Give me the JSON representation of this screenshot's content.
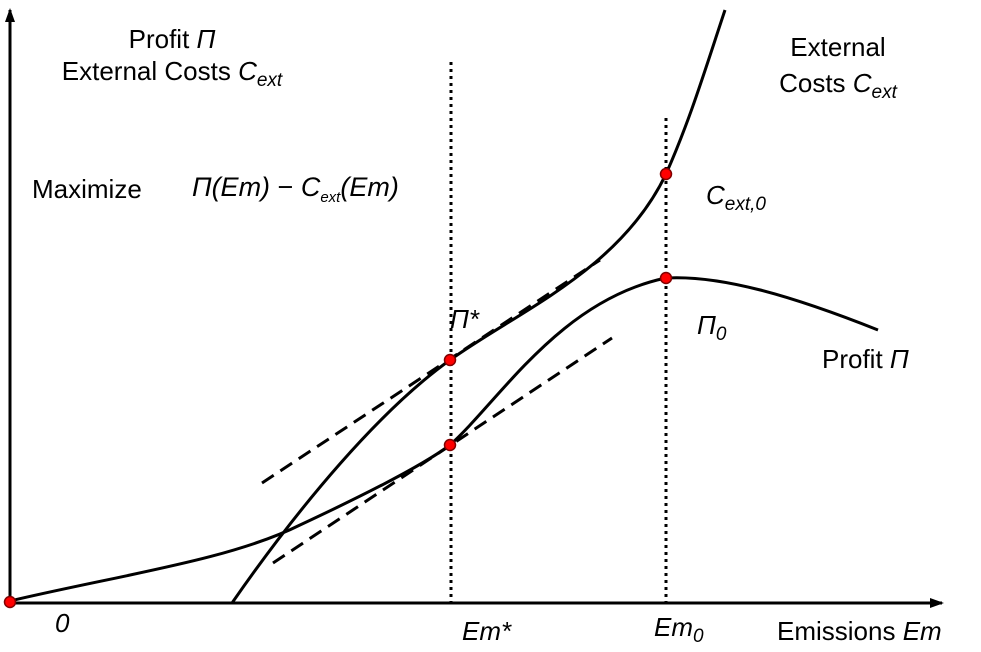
{
  "y_axis_label": {
    "line1_text": "Profit ",
    "line1_symbol": "Π",
    "line2_text": "External Costs ",
    "line2_symbol": "C",
    "line2_sub": "ext"
  },
  "objective": {
    "verb": "Maximize",
    "formula_pi": "Π(Em)",
    "formula_minus": " − ",
    "formula_c": "C",
    "formula_c_sub": "ext",
    "formula_tail": "(Em)"
  },
  "external_costs_curve_label": {
    "line1": "External",
    "line2_text": "Costs ",
    "line2_symbol": "C",
    "line2_sub": "ext"
  },
  "point_labels": {
    "cext0_base": "C",
    "cext0_sub": "ext,0",
    "pi_star": "Π*",
    "pi0_base": "Π",
    "pi0_sub": "0"
  },
  "profit_curve_label": {
    "text": "Profit ",
    "symbol": "Π"
  },
  "x_axis": {
    "origin": "0",
    "em_star": "Em*",
    "em0_base": "Em",
    "em0_sub": "0",
    "label_text": "Emissions ",
    "label_symbol": "Em"
  },
  "colors": {
    "curves": "#000000",
    "points": "#ff0000",
    "point_outline": "#800000"
  }
}
